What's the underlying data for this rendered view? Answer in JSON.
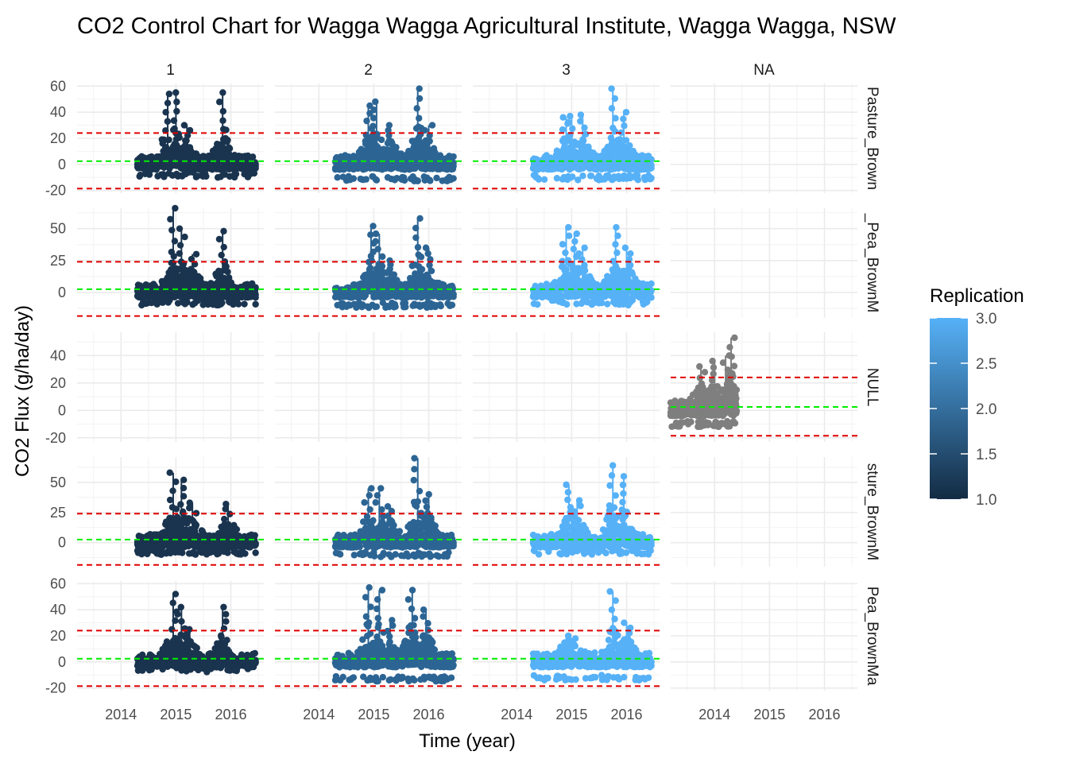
{
  "chart_data": {
    "type": "scatter",
    "title": "CO2 Control Chart for Wagga Wagga Agricultural Institute, Wagga Wagga, NSW",
    "xlabel": "Time (year)",
    "ylabel": "CO2 Flux (g/ha/day)",
    "x_ticks": [
      "2014",
      "2015",
      "2016"
    ],
    "xlim": [
      2013.2,
      2016.6
    ],
    "columns": [
      "1",
      "2",
      "3",
      "NA"
    ],
    "rows": [
      {
        "strip": "Pasture_Brown",
        "ylim": [
          -22,
          62
        ],
        "yticks": [
          -20,
          0,
          20,
          40,
          60
        ]
      },
      {
        "strip": "_Pea_BrownM",
        "ylim": [
          -20,
          66
        ],
        "yticks": [
          0,
          25,
          50
        ]
      },
      {
        "strip": "NULL",
        "ylim": [
          -23,
          57
        ],
        "yticks": [
          -20,
          0,
          20,
          40
        ]
      },
      {
        "strip": "sture_BrownM",
        "ylim": [
          -20,
          71
        ],
        "yticks": [
          0,
          25,
          50
        ]
      },
      {
        "strip": "Pea_BrownMa",
        "ylim": [
          -22,
          62
        ],
        "yticks": [
          -20,
          0,
          20,
          40,
          60
        ]
      }
    ],
    "control_limits": {
      "center": 2.5,
      "upper": 24,
      "lower": -18.5,
      "center_color": "#00ee00",
      "limit_color": "#e00000"
    },
    "legend": {
      "title": "Replication",
      "ticks": [
        "1.0",
        "1.5",
        "2.0",
        "2.5",
        "3.0"
      ],
      "low_color": "#132b43",
      "high_color": "#56b1f7",
      "na_color": "#7f7f7f",
      "position": "right"
    },
    "series": [
      {
        "replication": 1,
        "color": "#1a344f",
        "panels": [
          {
            "row": 0,
            "x_start": 2014.3,
            "x_end": 2016.45,
            "peaks": [
              [
                2014.85,
                54
              ],
              [
                2015.0,
                55
              ],
              [
                2015.2,
                30
              ],
              [
                2015.85,
                55
              ]
            ],
            "min": -10
          },
          {
            "row": 1,
            "x_start": 2014.3,
            "x_end": 2016.45,
            "peaks": [
              [
                2014.95,
                66
              ],
              [
                2015.1,
                50
              ],
              [
                2015.3,
                30
              ],
              [
                2015.85,
                48
              ]
            ],
            "min": -10
          },
          {
            "row": 3,
            "x_start": 2014.3,
            "x_end": 2016.45,
            "peaks": [
              [
                2014.95,
                58
              ],
              [
                2015.1,
                52
              ],
              [
                2015.3,
                33
              ],
              [
                2015.95,
                32
              ]
            ],
            "min": -10
          },
          {
            "row": 4,
            "x_start": 2014.3,
            "x_end": 2016.45,
            "peaks": [
              [
                2014.95,
                52
              ],
              [
                2015.1,
                42
              ],
              [
                2015.25,
                25
              ],
              [
                2015.85,
                42
              ]
            ],
            "min": -8
          }
        ]
      },
      {
        "replication": 2,
        "color": "#2c6594",
        "panels": [
          {
            "row": 0,
            "x_start": 2014.3,
            "x_end": 2016.45,
            "peaks": [
              [
                2014.9,
                45
              ],
              [
                2015.05,
                48
              ],
              [
                2015.3,
                30
              ],
              [
                2015.8,
                58
              ],
              [
                2016.0,
                30
              ]
            ],
            "min": -13
          },
          {
            "row": 1,
            "x_start": 2014.3,
            "x_end": 2016.45,
            "peaks": [
              [
                2014.95,
                52
              ],
              [
                2015.1,
                46
              ],
              [
                2015.3,
                25
              ],
              [
                2015.8,
                58
              ],
              [
                2016.0,
                35
              ]
            ],
            "min": -12
          },
          {
            "row": 3,
            "x_start": 2014.3,
            "x_end": 2016.45,
            "peaks": [
              [
                2014.9,
                45
              ],
              [
                2015.1,
                45
              ],
              [
                2015.3,
                30
              ],
              [
                2015.8,
                70
              ],
              [
                2016.0,
                40
              ]
            ],
            "min": -12
          },
          {
            "row": 4,
            "x_start": 2014.3,
            "x_end": 2016.45,
            "peaks": [
              [
                2014.9,
                57
              ],
              [
                2015.1,
                55
              ],
              [
                2015.3,
                32
              ],
              [
                2015.7,
                55
              ],
              [
                2015.95,
                40
              ]
            ],
            "min": -15
          }
        ]
      },
      {
        "replication": 3,
        "color": "#56b1f7",
        "panels": [
          {
            "row": 0,
            "x_start": 2014.3,
            "x_end": 2016.45,
            "peaks": [
              [
                2014.9,
                36
              ],
              [
                2015.0,
                37
              ],
              [
                2015.2,
                38
              ],
              [
                2015.75,
                58
              ],
              [
                2015.95,
                40
              ]
            ],
            "min": -12
          },
          {
            "row": 1,
            "x_start": 2014.3,
            "x_end": 2016.45,
            "peaks": [
              [
                2014.9,
                51
              ],
              [
                2015.05,
                46
              ],
              [
                2015.2,
                35
              ],
              [
                2015.8,
                51
              ],
              [
                2016.0,
                35
              ]
            ],
            "min": -10
          },
          {
            "row": 3,
            "x_start": 2014.3,
            "x_end": 2016.45,
            "peaks": [
              [
                2014.95,
                48
              ],
              [
                2015.1,
                35
              ],
              [
                2015.75,
                64
              ],
              [
                2015.95,
                55
              ]
            ],
            "min": -10
          },
          {
            "row": 4,
            "x_start": 2014.3,
            "x_end": 2016.45,
            "peaks": [
              [
                2014.9,
                20
              ],
              [
                2015.0,
                18
              ],
              [
                2015.3,
                5
              ],
              [
                2015.75,
                54
              ],
              [
                2016.0,
                30
              ]
            ],
            "min": -14
          }
        ]
      },
      {
        "replication": null,
        "color": "#7f7f7f",
        "panels": [
          {
            "row": 2,
            "x_start": 2013.2,
            "x_end": 2014.4,
            "peaks": [
              [
                2013.75,
                32
              ],
              [
                2014.0,
                36
              ],
              [
                2014.2,
                40
              ],
              [
                2014.3,
                53
              ]
            ],
            "min": -12
          }
        ]
      }
    ]
  }
}
